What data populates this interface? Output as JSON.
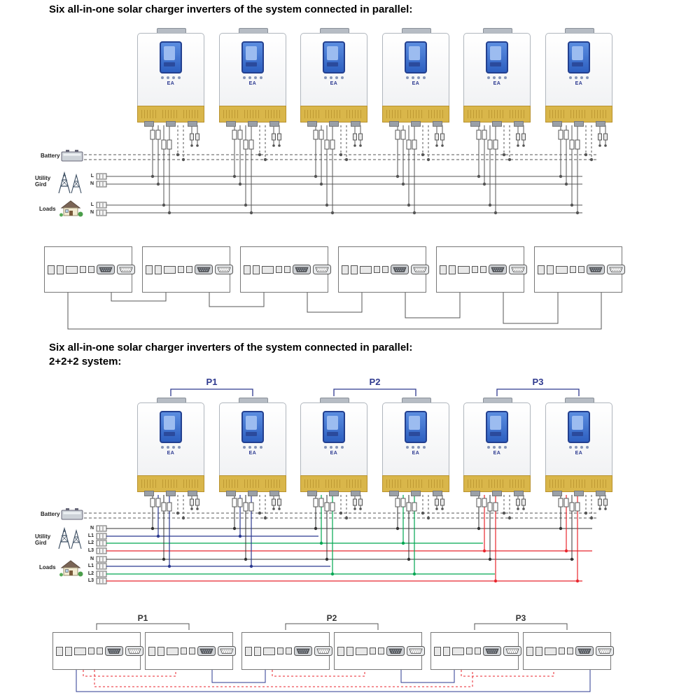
{
  "colors": {
    "wire": "#555555",
    "neutral_wire": "#333333",
    "phase_colors": [
      "#2b3990",
      "#00a651",
      "#e8262d"
    ],
    "group_label": "#2f3a8f",
    "inverter_band": "#d9b64a",
    "display_blue": "#2d5fc0"
  },
  "icons": {
    "battery": "battery-icon",
    "utility": "power-towers-icon",
    "loads": "house-icon",
    "dsub": "dsub-connector-icon"
  },
  "inverter": {
    "logo": "EA"
  },
  "section1": {
    "title": "Six all-in-one solar charger inverters of the system connected in parallel:",
    "inverter_count": 6,
    "comm_box_count": 6,
    "battery_label": "Battery",
    "utility_label": "Utility Gird",
    "loads_label": "Loads",
    "utility_lines": [
      "L",
      "N"
    ],
    "loads_lines": [
      "L",
      "N"
    ]
  },
  "section2": {
    "title_line1": "Six all-in-one solar charger inverters of the system connected in parallel:",
    "title_line2": "2+2+2 system:",
    "inverter_count": 6,
    "comm_box_count": 6,
    "groups": [
      "P1",
      "P2",
      "P3"
    ],
    "comm_groups": [
      "P1",
      "P2",
      "P3"
    ],
    "battery_label": "Battery",
    "utility_label": "Utility Gird",
    "loads_label": "Loads",
    "utility_lines": [
      "N",
      "L1",
      "L2",
      "L3"
    ],
    "loads_lines": [
      "N",
      "L1",
      "L2",
      "L3"
    ]
  }
}
